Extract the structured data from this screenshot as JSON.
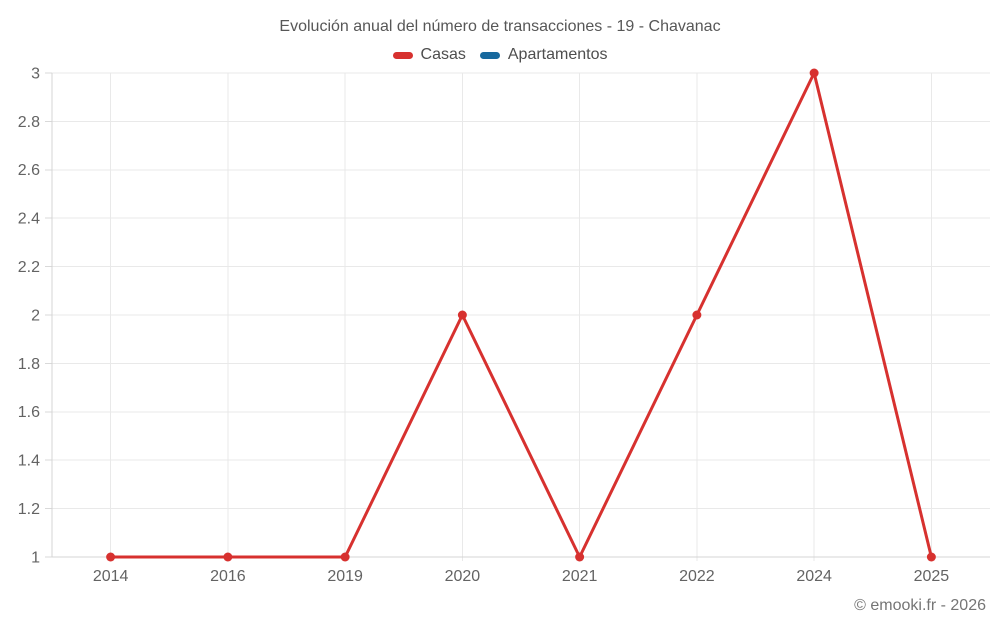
{
  "page": {
    "background": "#ffffff"
  },
  "chart_data": {
    "type": "line",
    "title": "Evolución anual del número de transacciones - 19 - Chavanac",
    "categories": [
      "2014",
      "2016",
      "2019",
      "2020",
      "2021",
      "2022",
      "2024",
      "2025"
    ],
    "series": [
      {
        "name": "Casas",
        "color": "#d7312f",
        "values": [
          1,
          1,
          1,
          2,
          1,
          2,
          3,
          1
        ]
      },
      {
        "name": "Apartamentos",
        "color": "#17699e",
        "values": []
      }
    ],
    "xlabel": "",
    "ylabel": "",
    "ylim": [
      1,
      3
    ],
    "y_ticks": [
      1,
      1.2,
      1.4,
      1.6,
      1.8,
      2,
      2.2,
      2.4,
      2.6,
      2.8,
      3
    ],
    "y_tick_labels": [
      "1",
      "1.2",
      "1.4",
      "1.6",
      "1.8",
      "2",
      "2.2",
      "2.4",
      "2.6",
      "2.8",
      "3"
    ],
    "grid": true,
    "legend_position": "top",
    "marker": "circle"
  },
  "footer": {
    "credit": "© emooki.fr - 2026"
  },
  "colors": {
    "grid": "#e9e9e9",
    "axis": "#d4d4d4",
    "tick": "#d9d9d9",
    "tick_text": "#636363",
    "title_text": "#575757",
    "legend_text": "#4e4e4e",
    "footer_text": "#757575"
  }
}
